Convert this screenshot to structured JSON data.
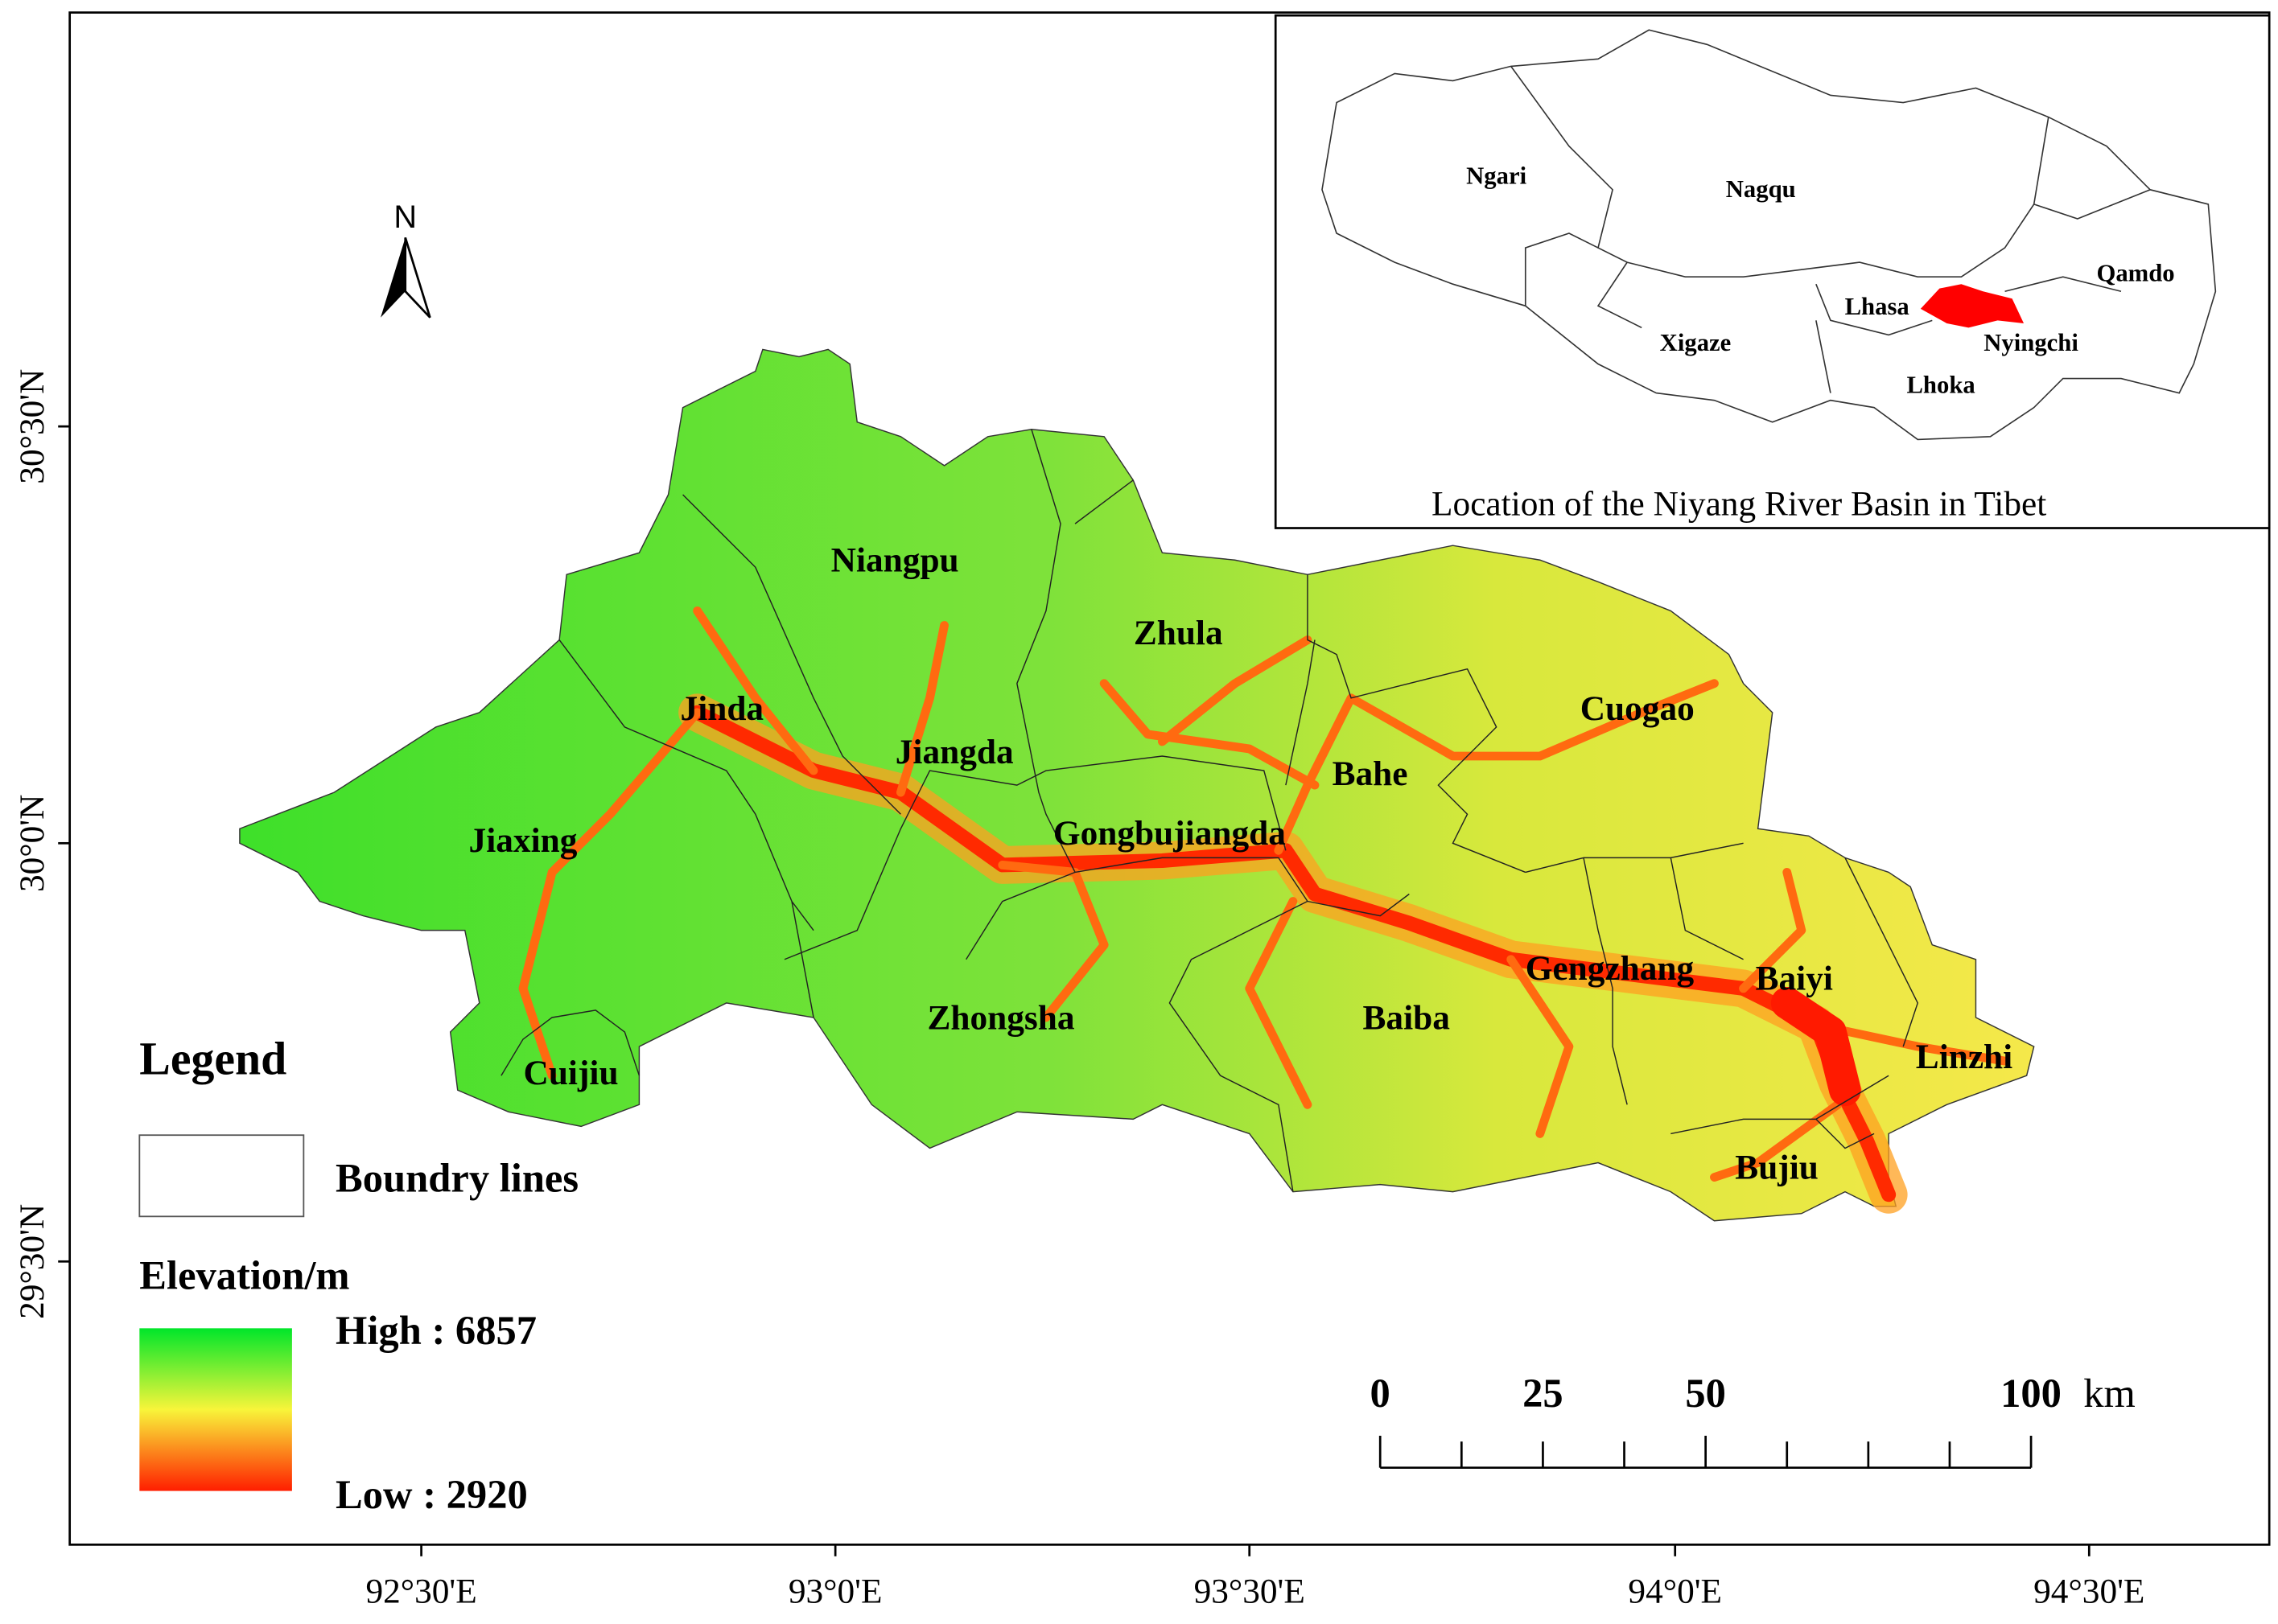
{
  "map": {
    "north_arrow": "N",
    "x_ticks": [
      "92°30'E",
      "93°0'E",
      "93°30'E",
      "94°0'E",
      "94°30'E"
    ],
    "y_ticks": [
      "30°30'N",
      "30°0'N",
      "29°30'N"
    ],
    "regions": [
      "Niangpu",
      "Zhula",
      "Jinda",
      "Jiangda",
      "Cuogao",
      "Bahe",
      "Jiaxing",
      "Gongbujiangda",
      "Gengzhang",
      "Baiyi",
      "Zhongsha",
      "Baiba",
      "Linzhi",
      "Cuijiu",
      "Bujiu"
    ],
    "legend": {
      "title": "Legend",
      "boundary": "Boundry lines",
      "elevation_title": "Elevation/m",
      "high": "High : 6857",
      "low": "Low : 2920"
    },
    "scale_bar": {
      "labels": [
        "0",
        "25",
        "50",
        "100"
      ],
      "unit": "km"
    },
    "inset": {
      "caption": "Location of the Niyang River Basin in Tibet",
      "labels": [
        "Ngari",
        "Nagqu",
        "Qamdo",
        "Lhasa",
        "Xigaze",
        "Nyingchi",
        "Lhoka"
      ]
    }
  }
}
